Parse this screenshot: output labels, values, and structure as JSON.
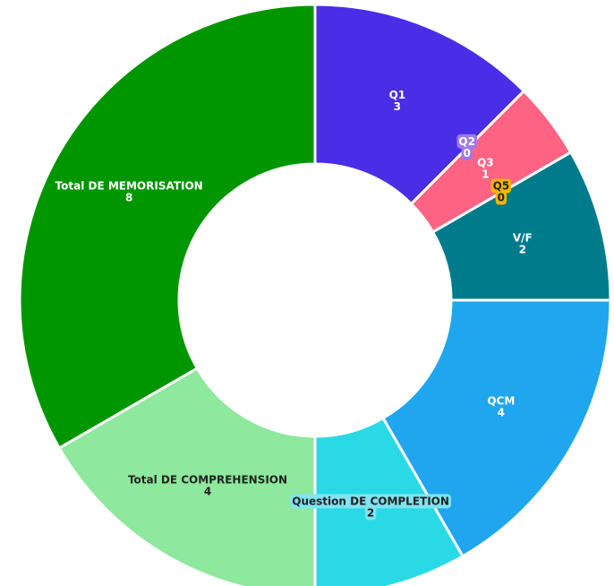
{
  "chart_data": {
    "type": "doughnut",
    "categories": [
      "Q1",
      "Q2",
      "Q3",
      "Q5",
      "V/F",
      "QCM",
      "Question DE COMPLETION",
      "Total DE COMPREHENSION",
      "Total  DE MEMORISATION"
    ],
    "values": [
      3,
      0,
      1,
      0,
      2,
      4,
      2,
      4,
      8
    ],
    "colors": [
      "#4a2de6",
      "#9b7ae8",
      "#ff6384",
      "#f2b600",
      "#007b8c",
      "#1fa6ee",
      "#2ad9e6",
      "#8ee89e",
      "#009600"
    ],
    "label_colors": [
      "#ffffff",
      "#ffffff",
      "#ffffff",
      "#222222",
      "#ffffff",
      "#ffffff",
      "#222222",
      "#222222",
      "#ffffff"
    ]
  }
}
